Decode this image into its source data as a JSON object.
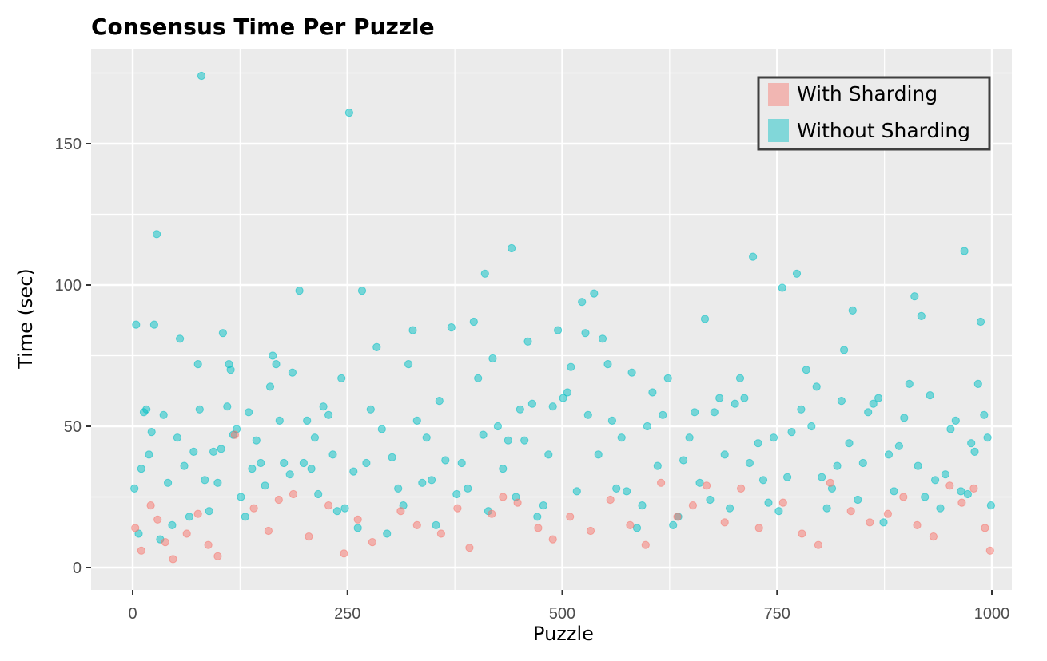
{
  "chart_data": {
    "type": "scatter",
    "title": "Consensus Time Per Puzzle",
    "xlabel": "Puzzle",
    "ylabel": "Time (sec)",
    "xlim": [
      0,
      1000
    ],
    "ylim": [
      0,
      175
    ],
    "x_ticks": [
      0,
      250,
      500,
      750,
      1000
    ],
    "y_ticks": [
      0,
      50,
      100,
      150
    ],
    "grid": true,
    "legend_position": "top-right",
    "background_color": "#ebebeb",
    "grid_color": "#ffffff",
    "series": [
      {
        "name": "With Sharding",
        "color": "#f8766d",
        "note_distribution": "about 1000 puzzles; most values between 0 and 10 sec, occasional values up to about 30 sec",
        "points": [
          [
            3,
            14
          ],
          [
            10,
            6
          ],
          [
            21,
            22
          ],
          [
            29,
            17
          ],
          [
            38,
            9
          ],
          [
            47,
            3
          ],
          [
            63,
            12
          ],
          [
            76,
            19
          ],
          [
            88,
            8
          ],
          [
            99,
            4
          ],
          [
            119,
            47
          ],
          [
            141,
            21
          ],
          [
            158,
            13
          ],
          [
            170,
            24
          ],
          [
            187,
            26
          ],
          [
            205,
            11
          ],
          [
            228,
            22
          ],
          [
            246,
            5
          ],
          [
            262,
            17
          ],
          [
            279,
            9
          ],
          [
            312,
            20
          ],
          [
            331,
            15
          ],
          [
            359,
            12
          ],
          [
            378,
            21
          ],
          [
            392,
            7
          ],
          [
            418,
            19
          ],
          [
            431,
            25
          ],
          [
            448,
            23
          ],
          [
            472,
            14
          ],
          [
            489,
            10
          ],
          [
            509,
            18
          ],
          [
            533,
            13
          ],
          [
            556,
            24
          ],
          [
            579,
            15
          ],
          [
            597,
            8
          ],
          [
            615,
            30
          ],
          [
            634,
            18
          ],
          [
            652,
            22
          ],
          [
            668,
            29
          ],
          [
            689,
            16
          ],
          [
            708,
            28
          ],
          [
            729,
            14
          ],
          [
            757,
            23
          ],
          [
            779,
            12
          ],
          [
            798,
            8
          ],
          [
            812,
            30
          ],
          [
            836,
            20
          ],
          [
            858,
            16
          ],
          [
            879,
            19
          ],
          [
            897,
            25
          ],
          [
            913,
            15
          ],
          [
            932,
            11
          ],
          [
            951,
            29
          ],
          [
            965,
            23
          ],
          [
            979,
            28
          ],
          [
            992,
            14
          ],
          [
            998,
            6
          ]
        ]
      },
      {
        "name": "Without Sharding",
        "color": "#00bfc4",
        "note_distribution": "about 1000 puzzles; widely scattered values mostly between 0 and 70 sec, with outliers up to about 174 sec",
        "points": [
          [
            2,
            28
          ],
          [
            4,
            86
          ],
          [
            7,
            12
          ],
          [
            10,
            35
          ],
          [
            13,
            55
          ],
          [
            16,
            56
          ],
          [
            19,
            40
          ],
          [
            22,
            48
          ],
          [
            25,
            86
          ],
          [
            28,
            118
          ],
          [
            32,
            10
          ],
          [
            36,
            54
          ],
          [
            41,
            30
          ],
          [
            46,
            15
          ],
          [
            52,
            46
          ],
          [
            55,
            81
          ],
          [
            60,
            36
          ],
          [
            66,
            18
          ],
          [
            71,
            41
          ],
          [
            76,
            72
          ],
          [
            78,
            56
          ],
          [
            80,
            174
          ],
          [
            84,
            31
          ],
          [
            89,
            20
          ],
          [
            94,
            41
          ],
          [
            99,
            30
          ],
          [
            103,
            42
          ],
          [
            105,
            83
          ],
          [
            110,
            57
          ],
          [
            112,
            72
          ],
          [
            114,
            70
          ],
          [
            117,
            47
          ],
          [
            121,
            49
          ],
          [
            126,
            25
          ],
          [
            131,
            18
          ],
          [
            135,
            55
          ],
          [
            139,
            35
          ],
          [
            144,
            45
          ],
          [
            149,
            37
          ],
          [
            154,
            29
          ],
          [
            160,
            64
          ],
          [
            163,
            75
          ],
          [
            167,
            72
          ],
          [
            171,
            52
          ],
          [
            176,
            37
          ],
          [
            183,
            33
          ],
          [
            186,
            69
          ],
          [
            194,
            98
          ],
          [
            199,
            37
          ],
          [
            203,
            52
          ],
          [
            208,
            35
          ],
          [
            212,
            46
          ],
          [
            216,
            26
          ],
          [
            222,
            57
          ],
          [
            228,
            54
          ],
          [
            233,
            40
          ],
          [
            238,
            20
          ],
          [
            243,
            67
          ],
          [
            247,
            21
          ],
          [
            252,
            161
          ],
          [
            257,
            34
          ],
          [
            262,
            14
          ],
          [
            267,
            98
          ],
          [
            272,
            37
          ],
          [
            277,
            56
          ],
          [
            284,
            78
          ],
          [
            290,
            49
          ],
          [
            296,
            12
          ],
          [
            302,
            39
          ],
          [
            309,
            28
          ],
          [
            315,
            22
          ],
          [
            321,
            72
          ],
          [
            326,
            84
          ],
          [
            331,
            52
          ],
          [
            337,
            30
          ],
          [
            342,
            46
          ],
          [
            348,
            31
          ],
          [
            353,
            15
          ],
          [
            357,
            59
          ],
          [
            364,
            38
          ],
          [
            371,
            85
          ],
          [
            377,
            26
          ],
          [
            383,
            37
          ],
          [
            390,
            28
          ],
          [
            397,
            87
          ],
          [
            402,
            67
          ],
          [
            408,
            47
          ],
          [
            410,
            104
          ],
          [
            414,
            20
          ],
          [
            419,
            74
          ],
          [
            425,
            50
          ],
          [
            431,
            35
          ],
          [
            437,
            45
          ],
          [
            441,
            113
          ],
          [
            446,
            25
          ],
          [
            451,
            56
          ],
          [
            456,
            45
          ],
          [
            460,
            80
          ],
          [
            465,
            58
          ],
          [
            471,
            18
          ],
          [
            478,
            22
          ],
          [
            484,
            40
          ],
          [
            489,
            57
          ],
          [
            495,
            84
          ],
          [
            501,
            60
          ],
          [
            506,
            62
          ],
          [
            510,
            71
          ],
          [
            517,
            27
          ],
          [
            523,
            94
          ],
          [
            527,
            83
          ],
          [
            530,
            54
          ],
          [
            537,
            97
          ],
          [
            542,
            40
          ],
          [
            547,
            81
          ],
          [
            553,
            72
          ],
          [
            558,
            52
          ],
          [
            563,
            28
          ],
          [
            569,
            46
          ],
          [
            575,
            27
          ],
          [
            581,
            69
          ],
          [
            587,
            14
          ],
          [
            593,
            22
          ],
          [
            599,
            50
          ],
          [
            605,
            62
          ],
          [
            611,
            36
          ],
          [
            617,
            54
          ],
          [
            623,
            67
          ],
          [
            629,
            15
          ],
          [
            635,
            18
          ],
          [
            641,
            38
          ],
          [
            648,
            46
          ],
          [
            654,
            55
          ],
          [
            660,
            30
          ],
          [
            666,
            88
          ],
          [
            672,
            24
          ],
          [
            677,
            55
          ],
          [
            683,
            60
          ],
          [
            689,
            40
          ],
          [
            695,
            21
          ],
          [
            701,
            58
          ],
          [
            707,
            67
          ],
          [
            712,
            60
          ],
          [
            718,
            37
          ],
          [
            722,
            110
          ],
          [
            728,
            44
          ],
          [
            734,
            31
          ],
          [
            740,
            23
          ],
          [
            746,
            46
          ],
          [
            752,
            20
          ],
          [
            756,
            99
          ],
          [
            762,
            32
          ],
          [
            767,
            48
          ],
          [
            773,
            104
          ],
          [
            778,
            56
          ],
          [
            784,
            70
          ],
          [
            790,
            50
          ],
          [
            796,
            64
          ],
          [
            802,
            32
          ],
          [
            808,
            21
          ],
          [
            814,
            28
          ],
          [
            820,
            36
          ],
          [
            825,
            59
          ],
          [
            828,
            77
          ],
          [
            834,
            44
          ],
          [
            838,
            91
          ],
          [
            844,
            24
          ],
          [
            850,
            37
          ],
          [
            856,
            55
          ],
          [
            862,
            58
          ],
          [
            868,
            60
          ],
          [
            874,
            16
          ],
          [
            880,
            40
          ],
          [
            886,
            27
          ],
          [
            892,
            43
          ],
          [
            898,
            53
          ],
          [
            904,
            65
          ],
          [
            910,
            96
          ],
          [
            914,
            36
          ],
          [
            918,
            89
          ],
          [
            922,
            25
          ],
          [
            928,
            61
          ],
          [
            934,
            31
          ],
          [
            940,
            21
          ],
          [
            946,
            33
          ],
          [
            952,
            49
          ],
          [
            958,
            52
          ],
          [
            964,
            27
          ],
          [
            968,
            112
          ],
          [
            972,
            26
          ],
          [
            976,
            44
          ],
          [
            980,
            41
          ],
          [
            984,
            65
          ],
          [
            987,
            87
          ],
          [
            991,
            54
          ],
          [
            995,
            46
          ],
          [
            999,
            22
          ]
        ]
      }
    ]
  }
}
